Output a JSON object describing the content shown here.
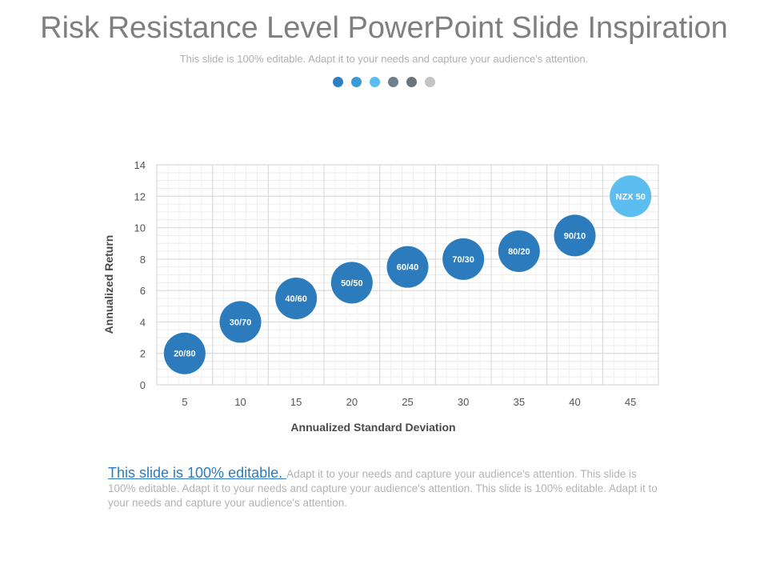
{
  "slide": {
    "title": "Risk Resistance Level PowerPoint Slide Inspiration",
    "subtitle": "This slide is 100% editable. Adapt it to your needs and capture your audience's attention.",
    "dot_colors": [
      "#2e80c2",
      "#3a9ad6",
      "#5bbdf0",
      "#6e7f8d",
      "#6b747b",
      "#c4c4c4"
    ]
  },
  "chart_data": {
    "type": "scatter",
    "xlabel": "Annualized Standard Deviation",
    "ylabel": "Annualized Return",
    "xlim": [
      2.5,
      47.5
    ],
    "ylim": [
      0,
      14
    ],
    "x_ticks": [
      5,
      10,
      15,
      20,
      25,
      30,
      35,
      40,
      45
    ],
    "y_ticks": [
      0,
      2,
      4,
      6,
      8,
      10,
      12,
      14
    ],
    "grid": true,
    "points": [
      {
        "x": 5,
        "y": 2,
        "label": "20/80",
        "color": "#2b7bbd"
      },
      {
        "x": 10,
        "y": 4,
        "label": "30/70",
        "color": "#2b7bbd"
      },
      {
        "x": 15,
        "y": 5.5,
        "label": "40/60",
        "color": "#2b7bbd"
      },
      {
        "x": 20,
        "y": 6.5,
        "label": "50/50",
        "color": "#2b7bbd"
      },
      {
        "x": 25,
        "y": 7.5,
        "label": "60/40",
        "color": "#2b7bbd"
      },
      {
        "x": 30,
        "y": 8,
        "label": "70/30",
        "color": "#2b7bbd"
      },
      {
        "x": 35,
        "y": 8.5,
        "label": "80/20",
        "color": "#2b7bbd"
      },
      {
        "x": 40,
        "y": 9.5,
        "label": "90/10",
        "color": "#2b7bbd"
      },
      {
        "x": 45,
        "y": 12,
        "label": "NZX 50",
        "color": "#5bbdf0"
      }
    ]
  },
  "footer": {
    "lead": "This slide is 100% editable. ",
    "body": "Adapt it to your needs and capture your audience's attention. This slide is 100% editable. Adapt it to your needs and capture your audience's attention. This slide is 100% editable. Adapt it to your needs and capture your audience's attention."
  }
}
